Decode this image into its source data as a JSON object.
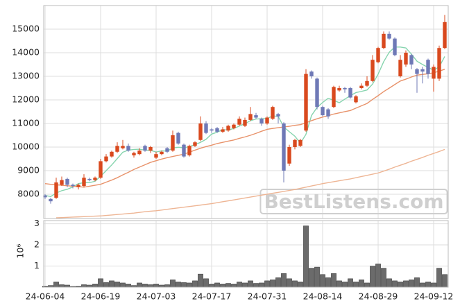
{
  "chart_data": [
    {
      "type": "candlestick",
      "open": [
        7950,
        7800,
        7850,
        8400,
        8650,
        8400,
        8300,
        8350,
        8650,
        8600,
        8700,
        9400,
        9600,
        9800,
        9950,
        10050,
        9650,
        9700,
        10050,
        9850,
        9550,
        9700,
        9950,
        9850,
        10600,
        10100,
        9650,
        10050,
        10300,
        11000,
        10750,
        10800,
        10650,
        10700,
        10800,
        10950,
        10900,
        11150,
        11350,
        11200,
        11000,
        11200,
        11400,
        11000,
        9300,
        10000,
        10050,
        10700,
        13200,
        12900,
        11700,
        11600,
        11700,
        12400,
        12500,
        12500,
        11900,
        12500,
        12600,
        12800,
        13600,
        14200,
        14800,
        14600,
        13000,
        13500,
        13900,
        13300,
        13300,
        13700,
        12900,
        12900,
        14200
      ],
      "high": [
        8000,
        7850,
        8700,
        8750,
        8700,
        8450,
        8450,
        8850,
        8700,
        8750,
        9500,
        9700,
        9850,
        10200,
        10300,
        10150,
        9800,
        9950,
        10100,
        10050,
        9800,
        9850,
        10000,
        10700,
        10650,
        10150,
        10100,
        10250,
        11300,
        11100,
        10800,
        10850,
        10850,
        10950,
        11000,
        11300,
        11250,
        11700,
        11450,
        11250,
        11300,
        11750,
        11450,
        11050,
        10100,
        10350,
        10350,
        13300,
        13250,
        12950,
        11750,
        11650,
        12600,
        12600,
        12550,
        12550,
        12200,
        12700,
        13000,
        13900,
        14250,
        14900,
        14900,
        14650,
        13900,
        14100,
        13950,
        13350,
        13400,
        13750,
        13500,
        14300,
        15600
      ],
      "low": [
        7800,
        7600,
        7800,
        8350,
        8300,
        8250,
        8200,
        8300,
        8550,
        8550,
        8650,
        9350,
        9550,
        9750,
        9900,
        9800,
        9550,
        9650,
        9800,
        9750,
        9500,
        9650,
        9750,
        9800,
        10100,
        9550,
        9600,
        10000,
        10250,
        10550,
        10600,
        10600,
        10600,
        10650,
        10750,
        10900,
        10850,
        11100,
        11200,
        10900,
        10950,
        11150,
        11000,
        8500,
        9200,
        9900,
        10000,
        10650,
        12900,
        11600,
        11300,
        11200,
        11650,
        12350,
        12300,
        12050,
        11850,
        12450,
        12550,
        12750,
        13550,
        14150,
        14550,
        13850,
        12950,
        13400,
        13300,
        12300,
        12700,
        12900,
        12350,
        12800,
        14150
      ],
      "close": [
        7870,
        7700,
        8500,
        8600,
        8400,
        8350,
        8400,
        8700,
        8600,
        8700,
        9400,
        9600,
        9800,
        10050,
        10050,
        9850,
        9750,
        9850,
        9850,
        10000,
        9700,
        9800,
        9800,
        10500,
        10150,
        9600,
        10050,
        10200,
        11000,
        10600,
        10700,
        10650,
        10750,
        10900,
        10950,
        11200,
        11150,
        11400,
        11250,
        11000,
        11250,
        11700,
        11300,
        9000,
        10000,
        10300,
        10300,
        13100,
        13000,
        11700,
        11350,
        11300,
        12550,
        12500,
        12450,
        12100,
        12150,
        12600,
        12800,
        13700,
        14200,
        14800,
        14600,
        13900,
        13700,
        14000,
        13500,
        13100,
        13200,
        13100,
        13400,
        14200,
        15300
      ],
      "up_color": "#d9491e",
      "down_color": "#6f79b6",
      "series": [
        {
          "color": "#86d4ae",
          "values": [
            7950,
            7900,
            8050,
            8150,
            8210,
            8310,
            8450,
            8490,
            8490,
            8550,
            8760,
            9000,
            9240,
            9510,
            9780,
            9870,
            9900,
            9910,
            9870,
            9860,
            9790,
            9840,
            9830,
            9960,
            9990,
            9970,
            10020,
            10100,
            10200,
            10330,
            10550,
            10630,
            10740,
            10720,
            10790,
            10890,
            10990,
            11120,
            11190,
            11200,
            11210,
            11320,
            11300,
            10850,
            10650,
            10460,
            10160,
            10540,
            11340,
            11680,
            11890,
            12070,
            11980,
            11880,
            12030,
            12180,
            12310,
            12360,
            12420,
            12670,
            13090,
            13620,
            14020,
            14240,
            14240,
            14200,
            13940,
            13640,
            13500,
            13380,
            13260,
            13400,
            13840
          ]
        },
        {
          "color": "#e8926a",
          "values": [
            8450,
            8420,
            8400,
            8380,
            8360,
            8340,
            8320,
            8300,
            8340,
            8380,
            8420,
            8510,
            8600,
            8700,
            8820,
            8930,
            9050,
            9150,
            9250,
            9350,
            9420,
            9490,
            9550,
            9600,
            9650,
            9700,
            9780,
            9870,
            9950,
            10020,
            10080,
            10150,
            10200,
            10250,
            10300,
            10370,
            10430,
            10500,
            10580,
            10670,
            10750,
            10790,
            10820,
            10850,
            10880,
            10920,
            10950,
            11030,
            11120,
            11200,
            11270,
            11330,
            11400,
            11450,
            11500,
            11550,
            11650,
            11750,
            11850,
            12020,
            12180,
            12350,
            12500,
            12650,
            12800,
            12880,
            12970,
            13050,
            13080,
            13110,
            13150,
            13220,
            13300
          ]
        },
        {
          "color": "#eeb594",
          "values": [
            null,
            null,
            7000,
            7010,
            7020,
            7030,
            7040,
            7050,
            7060,
            7070,
            7080,
            7100,
            7120,
            7140,
            7160,
            7180,
            7200,
            7230,
            7260,
            7280,
            7300,
            7330,
            7360,
            7390,
            7420,
            7450,
            7480,
            7510,
            7540,
            7570,
            7600,
            7640,
            7680,
            7720,
            7760,
            7800,
            7840,
            7880,
            7920,
            7960,
            8000,
            8040,
            8080,
            8120,
            8160,
            8200,
            8250,
            8300,
            8350,
            8400,
            8450,
            8490,
            8530,
            8570,
            8610,
            8650,
            8700,
            8750,
            8800,
            8850,
            8900,
            8980,
            9060,
            9150,
            9230,
            9310,
            9400,
            9480,
            9560,
            9650,
            9730,
            9810,
            9900
          ]
        }
      ],
      "ylim": [
        6970,
        16000
      ],
      "yticks": [
        8000,
        9000,
        10000,
        11000,
        12000,
        13000,
        14000,
        15000
      ],
      "grid": true,
      "annotation": "BestListens.com"
    },
    {
      "type": "bar",
      "categories": [
        "24-06-04",
        null,
        null,
        null,
        null,
        null,
        null,
        null,
        null,
        null,
        "24-06-19",
        null,
        null,
        null,
        null,
        null,
        null,
        null,
        null,
        null,
        "24-07-03",
        null,
        null,
        null,
        null,
        null,
        null,
        null,
        null,
        null,
        "24-07-17",
        null,
        null,
        null,
        null,
        null,
        null,
        null,
        null,
        null,
        "24-07-31",
        null,
        null,
        null,
        null,
        null,
        null,
        null,
        null,
        null,
        "24-08-14",
        null,
        null,
        null,
        null,
        null,
        null,
        null,
        null,
        null,
        "24-08-29",
        null,
        null,
        null,
        null,
        null,
        null,
        null,
        null,
        null,
        "24-09-12",
        null,
        null
      ],
      "values": [
        0.05,
        0.08,
        0.25,
        0.12,
        0.1,
        0.04,
        0.05,
        0.12,
        0.1,
        0.15,
        0.4,
        0.22,
        0.3,
        0.25,
        0.2,
        0.15,
        0.08,
        0.2,
        0.15,
        0.12,
        0.15,
        0.1,
        0.12,
        0.35,
        0.25,
        0.22,
        0.2,
        0.3,
        0.62,
        0.4,
        0.15,
        0.2,
        0.15,
        0.18,
        0.15,
        0.25,
        0.2,
        0.3,
        0.18,
        0.2,
        0.3,
        0.35,
        0.45,
        0.65,
        0.4,
        0.3,
        0.25,
        2.9,
        0.9,
        0.95,
        0.6,
        0.45,
        0.65,
        0.3,
        0.25,
        0.4,
        0.25,
        0.35,
        0.2,
        1.0,
        1.1,
        0.9,
        0.4,
        0.3,
        0.25,
        0.3,
        0.35,
        0.45,
        0.2,
        0.25,
        0.2,
        0.9,
        0.6
      ],
      "color": "#6b6b6b",
      "ylim": [
        0,
        3.15
      ],
      "yticks": [
        1,
        2,
        3
      ],
      "y_label": "10⁶",
      "grid": true
    }
  ]
}
